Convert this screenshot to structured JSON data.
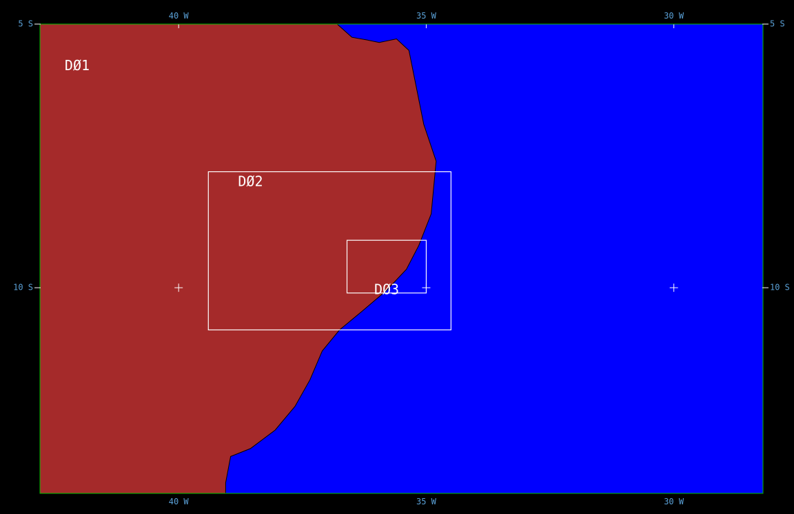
{
  "map": {
    "colors": {
      "background": "#000000",
      "land": "#a52a2a",
      "ocean": "#0000ff",
      "frame": "#00c000",
      "labels": "#5aa0d6",
      "domain_box": "#ffffff"
    },
    "extent": {
      "lon_min": -42.8,
      "lon_max": -28.2,
      "lat_max": -5.0,
      "lat_min": -13.9
    },
    "lon_ticks": [
      {
        "value": -40,
        "label": "40 W"
      },
      {
        "value": -35,
        "label": "35 W"
      },
      {
        "value": -30,
        "label": "30 W"
      }
    ],
    "lat_ticks": [
      {
        "value": -5,
        "label": "5 S"
      },
      {
        "value": -10,
        "label": "10 S"
      }
    ],
    "coastline": [
      [
        -36.8,
        -5.0
      ],
      [
        -36.5,
        -5.25
      ],
      [
        -36.2,
        -5.3
      ],
      [
        -35.95,
        -5.35
      ],
      [
        -35.6,
        -5.28
      ],
      [
        -35.35,
        -5.5
      ],
      [
        -35.2,
        -6.2
      ],
      [
        -35.05,
        -6.9
      ],
      [
        -34.8,
        -7.6
      ],
      [
        -34.85,
        -8.1
      ],
      [
        -34.9,
        -8.6
      ],
      [
        -35.15,
        -9.2
      ],
      [
        -35.4,
        -9.65
      ],
      [
        -35.8,
        -10.05
      ],
      [
        -36.3,
        -10.45
      ],
      [
        -36.75,
        -10.8
      ],
      [
        -37.1,
        -11.2
      ],
      [
        -37.35,
        -11.75
      ],
      [
        -37.65,
        -12.25
      ],
      [
        -38.05,
        -12.7
      ],
      [
        -38.55,
        -13.05
      ],
      [
        -38.95,
        -13.2
      ],
      [
        -39.05,
        -13.7
      ],
      [
        -39.05,
        -13.9
      ]
    ],
    "domains": [
      {
        "id": "D01",
        "label": "DØ1",
        "label_at": [
          -42.3,
          -5.8
        ]
      },
      {
        "id": "D02",
        "label": "DØ2",
        "label_at": [
          -38.8,
          -8.0
        ],
        "box": {
          "west": -39.4,
          "east": -34.5,
          "north": -7.8,
          "south": -10.8
        }
      },
      {
        "id": "D03",
        "label": "DØ3",
        "label_at": [
          -36.05,
          -10.05
        ],
        "box": {
          "west": -36.6,
          "east": -35.0,
          "north": -9.1,
          "south": -10.1
        }
      }
    ]
  }
}
